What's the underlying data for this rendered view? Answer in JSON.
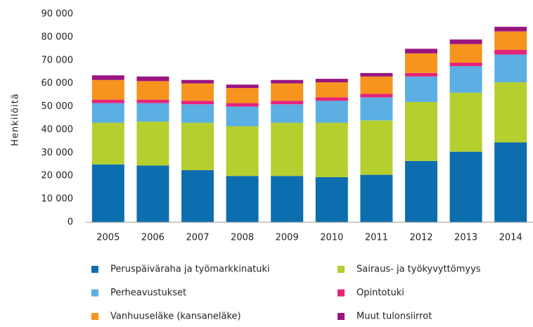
{
  "chart_data": {
    "type": "stacked_bar",
    "y_label": "Henkilöitä",
    "categories": [
      "2005",
      "2006",
      "2007",
      "2008",
      "2009",
      "2010",
      "2011",
      "2012",
      "2013",
      "2014"
    ],
    "series": [
      {
        "name": "Peruspäiväraha ja työmarkkinatuki",
        "color": "#0d6eaf",
        "values": [
          25000,
          24500,
          22500,
          20000,
          20000,
          19500,
          20500,
          26500,
          30500,
          34500
        ]
      },
      {
        "name": "Sairaus- ja työkyvyttömyys",
        "color": "#b5cf2f",
        "values": [
          18000,
          19000,
          20500,
          21500,
          23000,
          23500,
          23500,
          25500,
          25500,
          26000
        ]
      },
      {
        "name": "Perheavustukset",
        "color": "#5cafe2",
        "values": [
          8500,
          8000,
          8000,
          8500,
          8000,
          9500,
          10000,
          11000,
          11500,
          12000
        ]
      },
      {
        "name": "Opintotuki",
        "color": "#e6237b",
        "values": [
          1500,
          1500,
          1500,
          1500,
          1500,
          1500,
          1500,
          1500,
          1500,
          2000
        ]
      },
      {
        "name": "Vanhuuseläke (kansaneläke)",
        "color": "#f7941d",
        "values": [
          8500,
          8000,
          7500,
          6500,
          7500,
          6500,
          7500,
          8500,
          8000,
          8000
        ]
      },
      {
        "name": "Muut tulonsiirrot",
        "color": "#9a157f",
        "values": [
          2000,
          2000,
          1500,
          1500,
          1500,
          1500,
          1500,
          2000,
          2000,
          2000
        ]
      }
    ],
    "ylim": [
      0,
      90000
    ],
    "yticks": [
      0,
      {
        "value": 10000,
        "label": "10 000"
      },
      {
        "value": 20000,
        "label": "20 000"
      },
      {
        "value": 30000,
        "label": "30 000"
      },
      {
        "value": 40000,
        "label": "40 000"
      },
      {
        "value": 50000,
        "label": "50 000"
      },
      {
        "value": 60000,
        "label": "60 000"
      },
      {
        "value": 70000,
        "label": "70 000"
      },
      {
        "value": 80000,
        "label": "80 000"
      },
      {
        "value": 90000,
        "label": "90 000"
      }
    ],
    "grid": false
  }
}
